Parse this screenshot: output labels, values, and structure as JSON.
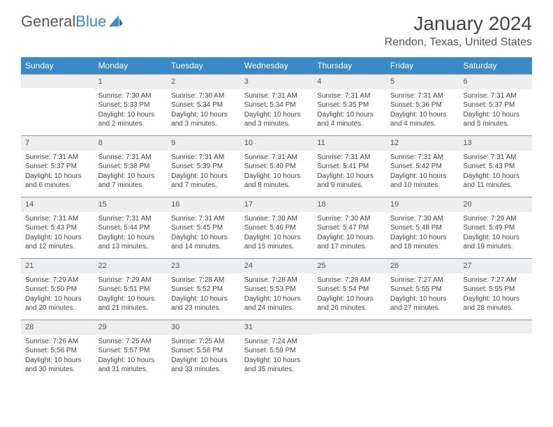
{
  "logo": {
    "word1": "General",
    "word2": "Blue"
  },
  "title": "January 2024",
  "location": "Rendon, Texas, United States",
  "weekdays": [
    "Sunday",
    "Monday",
    "Tuesday",
    "Wednesday",
    "Thursday",
    "Friday",
    "Saturday"
  ],
  "colors": {
    "header_bg": "#3a8ac8",
    "header_text": "#ffffff",
    "daynum_bg": "#eceef0",
    "text": "#444444",
    "border": "#999999",
    "background": "#ffffff"
  },
  "typography": {
    "title_fontsize": 28,
    "location_fontsize": 16,
    "weekday_fontsize": 12,
    "daynum_fontsize": 11,
    "body_fontsize": 10
  },
  "layout": {
    "columns": 7,
    "rows": 5,
    "start_offset": 1,
    "days_in_month": 31
  },
  "cells": [
    {
      "day": "",
      "sunrise": "",
      "sunset": "",
      "daylight": ""
    },
    {
      "day": "1",
      "sunrise": "Sunrise: 7:30 AM",
      "sunset": "Sunset: 5:33 PM",
      "daylight": "Daylight: 10 hours and 2 minutes."
    },
    {
      "day": "2",
      "sunrise": "Sunrise: 7:30 AM",
      "sunset": "Sunset: 5:34 PM",
      "daylight": "Daylight: 10 hours and 3 minutes."
    },
    {
      "day": "3",
      "sunrise": "Sunrise: 7:31 AM",
      "sunset": "Sunset: 5:34 PM",
      "daylight": "Daylight: 10 hours and 3 minutes."
    },
    {
      "day": "4",
      "sunrise": "Sunrise: 7:31 AM",
      "sunset": "Sunset: 5:35 PM",
      "daylight": "Daylight: 10 hours and 4 minutes."
    },
    {
      "day": "5",
      "sunrise": "Sunrise: 7:31 AM",
      "sunset": "Sunset: 5:36 PM",
      "daylight": "Daylight: 10 hours and 4 minutes."
    },
    {
      "day": "6",
      "sunrise": "Sunrise: 7:31 AM",
      "sunset": "Sunset: 5:37 PM",
      "daylight": "Daylight: 10 hours and 5 minutes."
    },
    {
      "day": "7",
      "sunrise": "Sunrise: 7:31 AM",
      "sunset": "Sunset: 5:37 PM",
      "daylight": "Daylight: 10 hours and 6 minutes."
    },
    {
      "day": "8",
      "sunrise": "Sunrise: 7:31 AM",
      "sunset": "Sunset: 5:38 PM",
      "daylight": "Daylight: 10 hours and 7 minutes."
    },
    {
      "day": "9",
      "sunrise": "Sunrise: 7:31 AM",
      "sunset": "Sunset: 5:39 PM",
      "daylight": "Daylight: 10 hours and 7 minutes."
    },
    {
      "day": "10",
      "sunrise": "Sunrise: 7:31 AM",
      "sunset": "Sunset: 5:40 PM",
      "daylight": "Daylight: 10 hours and 8 minutes."
    },
    {
      "day": "11",
      "sunrise": "Sunrise: 7:31 AM",
      "sunset": "Sunset: 5:41 PM",
      "daylight": "Daylight: 10 hours and 9 minutes."
    },
    {
      "day": "12",
      "sunrise": "Sunrise: 7:31 AM",
      "sunset": "Sunset: 5:42 PM",
      "daylight": "Daylight: 10 hours and 10 minutes."
    },
    {
      "day": "13",
      "sunrise": "Sunrise: 7:31 AM",
      "sunset": "Sunset: 5:43 PM",
      "daylight": "Daylight: 10 hours and 11 minutes."
    },
    {
      "day": "14",
      "sunrise": "Sunrise: 7:31 AM",
      "sunset": "Sunset: 5:43 PM",
      "daylight": "Daylight: 10 hours and 12 minutes."
    },
    {
      "day": "15",
      "sunrise": "Sunrise: 7:31 AM",
      "sunset": "Sunset: 5:44 PM",
      "daylight": "Daylight: 10 hours and 13 minutes."
    },
    {
      "day": "16",
      "sunrise": "Sunrise: 7:31 AM",
      "sunset": "Sunset: 5:45 PM",
      "daylight": "Daylight: 10 hours and 14 minutes."
    },
    {
      "day": "17",
      "sunrise": "Sunrise: 7:30 AM",
      "sunset": "Sunset: 5:46 PM",
      "daylight": "Daylight: 10 hours and 15 minutes."
    },
    {
      "day": "18",
      "sunrise": "Sunrise: 7:30 AM",
      "sunset": "Sunset: 5:47 PM",
      "daylight": "Daylight: 10 hours and 17 minutes."
    },
    {
      "day": "19",
      "sunrise": "Sunrise: 7:30 AM",
      "sunset": "Sunset: 5:48 PM",
      "daylight": "Daylight: 10 hours and 18 minutes."
    },
    {
      "day": "20",
      "sunrise": "Sunrise: 7:29 AM",
      "sunset": "Sunset: 5:49 PM",
      "daylight": "Daylight: 10 hours and 19 minutes."
    },
    {
      "day": "21",
      "sunrise": "Sunrise: 7:29 AM",
      "sunset": "Sunset: 5:50 PM",
      "daylight": "Daylight: 10 hours and 20 minutes."
    },
    {
      "day": "22",
      "sunrise": "Sunrise: 7:29 AM",
      "sunset": "Sunset: 5:51 PM",
      "daylight": "Daylight: 10 hours and 21 minutes."
    },
    {
      "day": "23",
      "sunrise": "Sunrise: 7:28 AM",
      "sunset": "Sunset: 5:52 PM",
      "daylight": "Daylight: 10 hours and 23 minutes."
    },
    {
      "day": "24",
      "sunrise": "Sunrise: 7:28 AM",
      "sunset": "Sunset: 5:53 PM",
      "daylight": "Daylight: 10 hours and 24 minutes."
    },
    {
      "day": "25",
      "sunrise": "Sunrise: 7:28 AM",
      "sunset": "Sunset: 5:54 PM",
      "daylight": "Daylight: 10 hours and 26 minutes."
    },
    {
      "day": "26",
      "sunrise": "Sunrise: 7:27 AM",
      "sunset": "Sunset: 5:55 PM",
      "daylight": "Daylight: 10 hours and 27 minutes."
    },
    {
      "day": "27",
      "sunrise": "Sunrise: 7:27 AM",
      "sunset": "Sunset: 5:55 PM",
      "daylight": "Daylight: 10 hours and 28 minutes."
    },
    {
      "day": "28",
      "sunrise": "Sunrise: 7:26 AM",
      "sunset": "Sunset: 5:56 PM",
      "daylight": "Daylight: 10 hours and 30 minutes."
    },
    {
      "day": "29",
      "sunrise": "Sunrise: 7:25 AM",
      "sunset": "Sunset: 5:57 PM",
      "daylight": "Daylight: 10 hours and 31 minutes."
    },
    {
      "day": "30",
      "sunrise": "Sunrise: 7:25 AM",
      "sunset": "Sunset: 5:58 PM",
      "daylight": "Daylight: 10 hours and 33 minutes."
    },
    {
      "day": "31",
      "sunrise": "Sunrise: 7:24 AM",
      "sunset": "Sunset: 5:59 PM",
      "daylight": "Daylight: 10 hours and 35 minutes."
    },
    {
      "day": "",
      "sunrise": "",
      "sunset": "",
      "daylight": ""
    },
    {
      "day": "",
      "sunrise": "",
      "sunset": "",
      "daylight": ""
    },
    {
      "day": "",
      "sunrise": "",
      "sunset": "",
      "daylight": ""
    }
  ]
}
